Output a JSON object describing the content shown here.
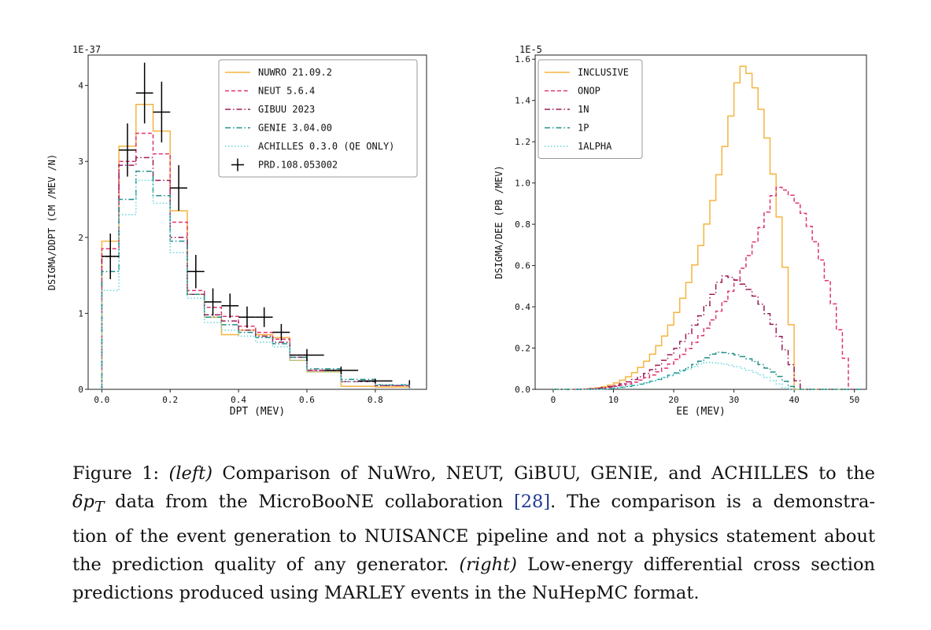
{
  "figure": {
    "left": {
      "chart_data": {
        "type": "line",
        "style": "step",
        "scale_label": "1E-37",
        "xlabel": "DPT (MEV)",
        "ylabel": "DSIGMA/DDPT (CM /MEV /N)",
        "xlim": [
          -0.04,
          0.95
        ],
        "ylim": [
          0,
          4.4
        ],
        "xticks": [
          0.0,
          0.2,
          0.4,
          0.6,
          0.8
        ],
        "xtick_labels": [
          "0.0",
          "0.2",
          "0.4",
          "0.6",
          "0.8"
        ],
        "yticks": [
          0,
          1,
          2,
          3,
          4
        ],
        "ytick_labels": [
          "0",
          "1",
          "2",
          "3",
          "4"
        ],
        "bin_edges": [
          0.0,
          0.05,
          0.1,
          0.15,
          0.2,
          0.25,
          0.3,
          0.35,
          0.4,
          0.45,
          0.5,
          0.55,
          0.6,
          0.7,
          0.8,
          0.9
        ],
        "legend_position": "top-right",
        "series": [
          {
            "name": "NUWRO 21.09.2",
            "color": "#f5b441",
            "dash": "solid",
            "values": [
              1.95,
              3.2,
              3.75,
              3.4,
              2.35,
              1.25,
              0.95,
              0.72,
              0.78,
              0.72,
              0.68,
              0.38,
              0.23,
              0.04,
              0.03
            ]
          },
          {
            "name": "NEUT 5.6.4",
            "color": "#e0336f",
            "dash": "dashed",
            "values": [
              1.85,
              3.0,
              3.37,
              3.1,
              2.2,
              1.3,
              1.08,
              0.96,
              0.83,
              0.75,
              0.66,
              0.45,
              0.25,
              0.1,
              0.05
            ]
          },
          {
            "name": "GIBUU 2023",
            "color": "#9b1c58",
            "dash": "dashdot",
            "values": [
              1.75,
              2.95,
              3.05,
              2.75,
              2.0,
              1.25,
              0.98,
              0.9,
              0.78,
              0.7,
              0.62,
              0.42,
              0.25,
              0.1,
              0.05
            ]
          },
          {
            "name": "GENIE 3.04.00",
            "color": "#1f8f8a",
            "dash": "dashdot",
            "values": [
              1.55,
              2.5,
              2.87,
              2.55,
              1.95,
              1.25,
              0.95,
              0.85,
              0.75,
              0.68,
              0.6,
              0.42,
              0.27,
              0.13,
              0.06
            ]
          },
          {
            "name": "ACHILLES 0.3.0 (QE ONLY)",
            "color": "#64d6d9",
            "dash": "dotted",
            "values": [
              1.3,
              2.3,
              2.75,
              2.45,
              1.8,
              1.2,
              0.88,
              0.78,
              0.7,
              0.62,
              0.56,
              0.38,
              0.23,
              0.1,
              0.06
            ]
          }
        ],
        "data_points": {
          "name": "PRD.108.053002",
          "color": "#000000",
          "points": [
            {
              "x": 0.025,
              "y": 1.75,
              "xerr": 0.025,
              "yerr": 0.3
            },
            {
              "x": 0.075,
              "y": 3.15,
              "xerr": 0.025,
              "yerr": 0.35
            },
            {
              "x": 0.125,
              "y": 3.9,
              "xerr": 0.025,
              "yerr": 0.4
            },
            {
              "x": 0.175,
              "y": 3.65,
              "xerr": 0.025,
              "yerr": 0.4
            },
            {
              "x": 0.225,
              "y": 2.65,
              "xerr": 0.025,
              "yerr": 0.3
            },
            {
              "x": 0.275,
              "y": 1.55,
              "xerr": 0.025,
              "yerr": 0.22
            },
            {
              "x": 0.325,
              "y": 1.15,
              "xerr": 0.025,
              "yerr": 0.18
            },
            {
              "x": 0.375,
              "y": 1.1,
              "xerr": 0.025,
              "yerr": 0.16
            },
            {
              "x": 0.425,
              "y": 0.95,
              "xerr": 0.025,
              "yerr": 0.14
            },
            {
              "x": 0.475,
              "y": 0.95,
              "xerr": 0.025,
              "yerr": 0.13
            },
            {
              "x": 0.525,
              "y": 0.75,
              "xerr": 0.025,
              "yerr": 0.11
            },
            {
              "x": 0.6,
              "y": 0.45,
              "xerr": 0.05,
              "yerr": 0.08
            },
            {
              "x": 0.7,
              "y": 0.25,
              "xerr": 0.05,
              "yerr": 0.05
            },
            {
              "x": 0.8,
              "y": 0.11,
              "xerr": 0.05,
              "yerr": 0.03
            },
            {
              "x": 0.9,
              "y": 0.09,
              "xerr": 0.0,
              "yerr": 0.03
            }
          ]
        }
      }
    },
    "right": {
      "chart_data": {
        "type": "line",
        "style": "step",
        "scale_label": "1E-5",
        "xlabel": "EE (MEV)",
        "ylabel": "DSIGMA/DEE (PB /MEV)",
        "xlim": [
          -3,
          52
        ],
        "ylim": [
          0,
          1.62
        ],
        "xticks": [
          0,
          10,
          20,
          30,
          40,
          50
        ],
        "xtick_labels": [
          "0",
          "10",
          "20",
          "30",
          "40",
          "50"
        ],
        "yticks": [
          0.0,
          0.2,
          0.4,
          0.6,
          0.8,
          1.0,
          1.2,
          1.4,
          1.6
        ],
        "ytick_labels": [
          "0.0",
          "0.2",
          "0.4",
          "0.6",
          "0.8",
          "1.0",
          "1.2",
          "1.4",
          "1.6"
        ],
        "legend_position": "top-left",
        "series": [
          {
            "name": "INCLUSIVE",
            "color": "#f5b441",
            "dash": "solid",
            "profile": {
              "start": 2,
              "peak": 31,
              "end": 40.5,
              "height": 1.57,
              "power": 3.2
            }
          },
          {
            "name": "ONOP",
            "color": "#e0336f",
            "dash": "dashed",
            "profile": {
              "start": 2,
              "peak": 37,
              "end": 49.5,
              "height": 0.98,
              "power": 3.0
            }
          },
          {
            "name": "1N",
            "color": "#9b1c58",
            "dash": "dashdot",
            "profile": {
              "start": 2,
              "peak": 28,
              "end": 41,
              "height": 0.55,
              "power": 3.0
            }
          },
          {
            "name": "1P",
            "color": "#1f8f8a",
            "dash": "dashdot",
            "profile": {
              "start": 6,
              "peak": 27,
              "end": 40,
              "height": 0.18,
              "power": 2.2
            }
          },
          {
            "name": "1ALPHA",
            "color": "#64d6d9",
            "dash": "dotted",
            "profile": {
              "start": 6,
              "peak": 25,
              "end": 39,
              "height": 0.13,
              "power": 2.0
            }
          }
        ]
      }
    }
  },
  "caption": {
    "figure_label": "Figure 1:",
    "left_tag": "(left)",
    "line1_rest": "Comparison of NuWro, NEUT, GiBUU, GENIE, and ACHILLES to the",
    "line2_symbol": "δp",
    "line2_subscript": "T",
    "line2_mid": "data from the MicroBooNE collaboration",
    "line2_ref": "[28]",
    "line2_end": ". The comparison is a demonstra-",
    "line3": "tion of the event generation to NUISANCE pipeline and not a physics statement about",
    "line4_start": "the prediction quality of any generator.",
    "right_tag": "(right)",
    "line4_end": "Low-energy differential cross section",
    "line5": "predictions produced using MARLEY events in the NuHepMC format."
  }
}
